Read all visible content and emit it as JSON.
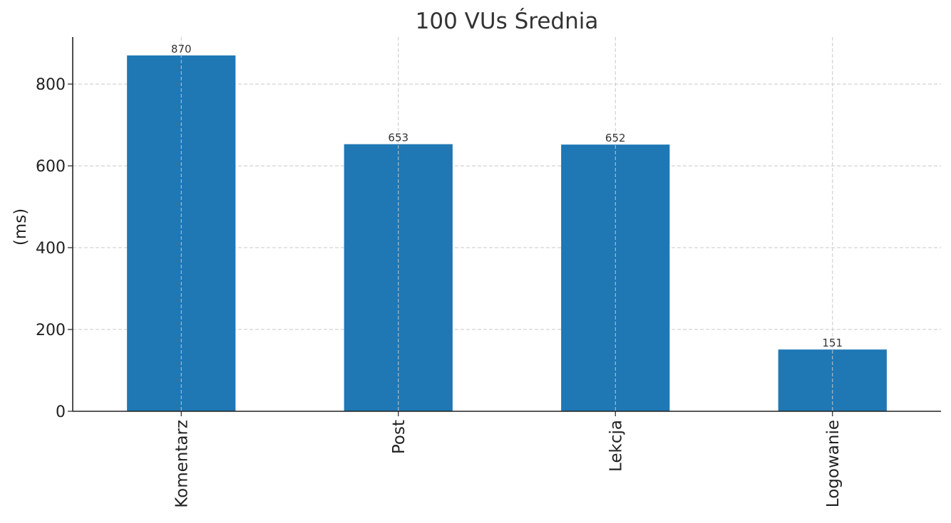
{
  "chart_data": {
    "type": "bar",
    "title": "100 VUs Średnia",
    "xlabel": "",
    "ylabel": "(ms)",
    "categories": [
      "Komentarz",
      "Post",
      "Lekcja",
      "Logowanie"
    ],
    "values": [
      870,
      653,
      652,
      151
    ],
    "ylim": [
      0,
      915
    ],
    "yticks": [
      0,
      200,
      400,
      600,
      800
    ],
    "grid": true,
    "bar_color": "#1f77b4"
  }
}
